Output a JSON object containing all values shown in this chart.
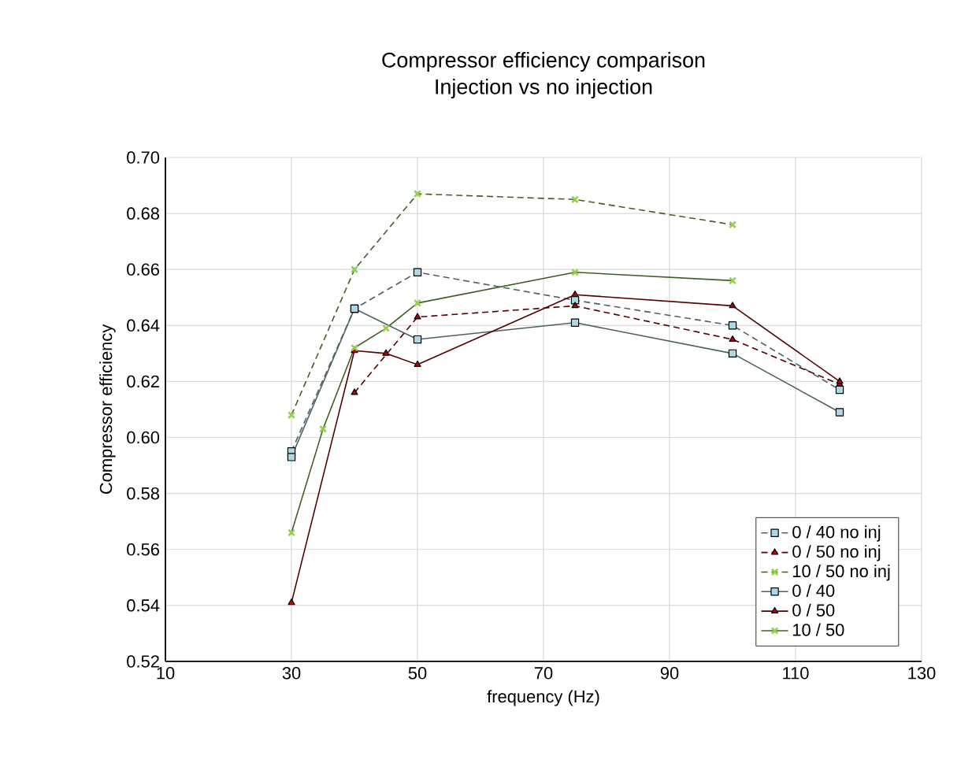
{
  "chart_data": {
    "type": "line",
    "title": "Compressor efficiency comparison",
    "subtitle": "Injection vs no injection",
    "xlabel": "frequency (Hz)",
    "ylabel": "Compressor efficiency",
    "xlim": [
      10,
      130
    ],
    "xticks": [
      10,
      30,
      50,
      70,
      90,
      110,
      130
    ],
    "ylim": [
      0.52,
      0.7
    ],
    "yticks": [
      {
        "value": 0.52,
        "label": "0.52"
      },
      {
        "value": 0.54,
        "label": "0.54"
      },
      {
        "value": 0.56,
        "label": "0.56"
      },
      {
        "value": 0.58,
        "label": "0.58"
      },
      {
        "value": 0.6,
        "label": "0.60"
      },
      {
        "value": 0.62,
        "label": "0.62"
      },
      {
        "value": 0.64,
        "label": "0.64"
      },
      {
        "value": 0.66,
        "label": "0.66"
      },
      {
        "value": 0.68,
        "label": "0.68"
      },
      {
        "value": 0.7,
        "label": "0.70"
      }
    ],
    "grid": true,
    "legend": "bottom right",
    "series": [
      {
        "name": "0 / 40 no inj",
        "color": "#add8e6",
        "line_style": "dashed",
        "marker": "square",
        "x": [
          30,
          40,
          50,
          75,
          100,
          117
        ],
        "values": [
          0.595,
          0.646,
          0.659,
          0.649,
          0.64,
          0.617
        ]
      },
      {
        "name": "0 / 50 no inj",
        "color": "#c00000",
        "line_style": "dashed",
        "marker": "triangle",
        "x": [
          40,
          50,
          75,
          100,
          117
        ],
        "values": [
          0.616,
          0.643,
          0.647,
          0.635,
          0.619
        ]
      },
      {
        "name": "10 / 50 no inj",
        "color": "#92d050",
        "line_style": "dashed",
        "marker": "cross",
        "x": [
          30,
          40,
          50,
          75,
          100
        ],
        "values": [
          0.608,
          0.66,
          0.687,
          0.685,
          0.676
        ]
      },
      {
        "name": "0 / 40",
        "color": "#add8e6",
        "line_style": "solid",
        "marker": "square",
        "x": [
          30,
          40,
          50,
          75,
          100,
          117
        ],
        "values": [
          0.593,
          0.646,
          0.635,
          0.641,
          0.63,
          0.609
        ]
      },
      {
        "name": "0 / 50",
        "color": "#c00000",
        "line_style": "solid",
        "marker": "triangle",
        "x": [
          30,
          40,
          45,
          50,
          75,
          100,
          117
        ],
        "values": [
          0.541,
          0.631,
          0.63,
          0.626,
          0.651,
          0.647,
          0.62
        ]
      },
      {
        "name": "10 / 50",
        "color": "#92d050",
        "line_style": "solid",
        "marker": "cross",
        "x": [
          30,
          35,
          40,
          45,
          50,
          75,
          100
        ],
        "values": [
          0.566,
          0.603,
          0.632,
          0.639,
          0.648,
          0.659,
          0.656
        ]
      }
    ]
  }
}
